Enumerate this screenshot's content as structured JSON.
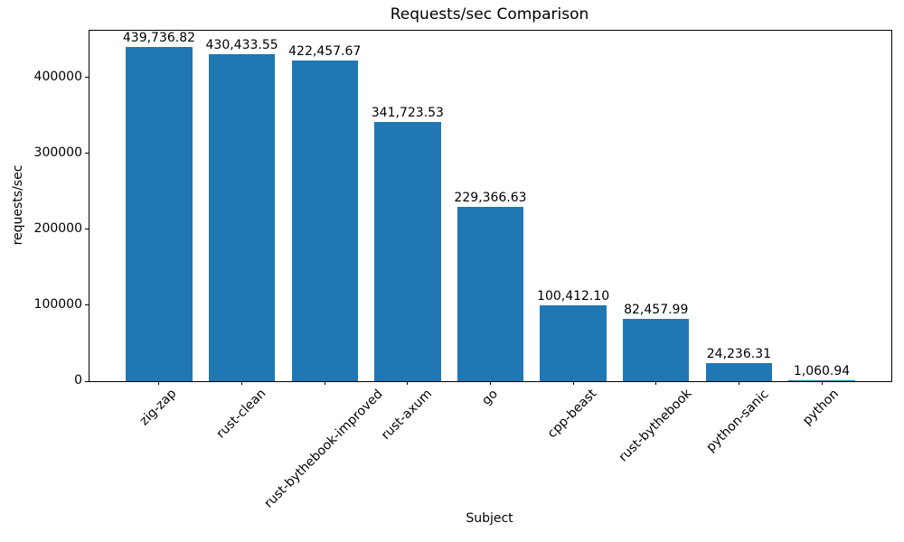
{
  "chart_data": {
    "type": "bar",
    "title": "Requests/sec Comparison",
    "xlabel": "Subject",
    "ylabel": "requests/sec",
    "categories": [
      "zig-zap",
      "rust-clean",
      "rust-bythebook-improved",
      "rust-axum",
      "go",
      "cpp-beast",
      "rust-bythebook",
      "python-sanic",
      "python"
    ],
    "values": [
      439736.82,
      430433.55,
      422457.67,
      341723.53,
      229366.63,
      100412.1,
      82457.99,
      24236.31,
      1060.94
    ],
    "value_labels": [
      "439,736.82",
      "430,433.55",
      "422,457.67",
      "341,723.53",
      "229,366.63",
      "100,412.10",
      "82,457.99",
      "24,236.31",
      "1,060.94"
    ],
    "yticks": [
      0,
      100000,
      200000,
      300000,
      400000
    ],
    "ytick_labels": [
      "0",
      "100000",
      "200000",
      "300000",
      "400000"
    ],
    "ylim": [
      0,
      461723
    ],
    "bar_color": "#1f77b4",
    "bar_rel_width": 0.8,
    "grid": false,
    "legend": null
  }
}
